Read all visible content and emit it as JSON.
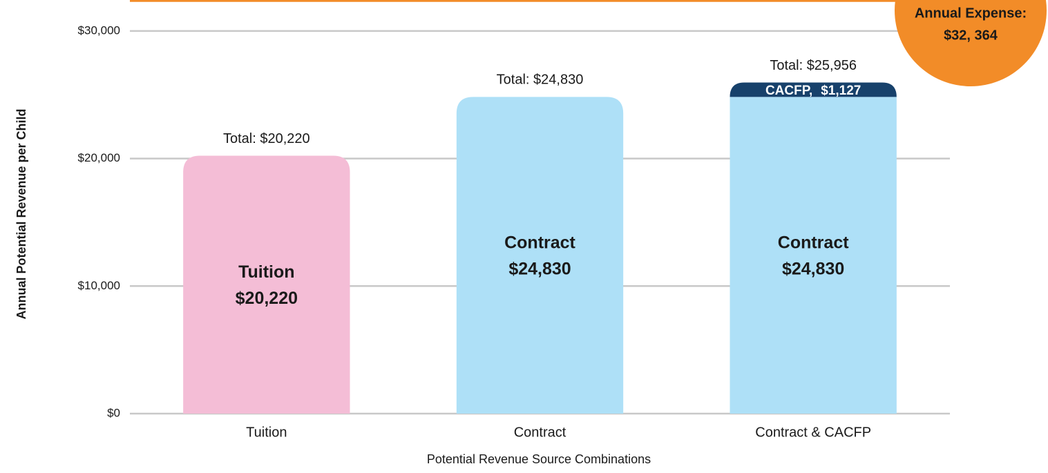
{
  "chart_data": {
    "type": "stacked_bar",
    "categories": [
      "Tuition",
      "Contract",
      "Contract & CACFP"
    ],
    "series": [
      {
        "name": "Tuition",
        "color": "#f4bdd6",
        "values": [
          20220,
          null,
          null
        ],
        "value_labels": [
          "$20,220",
          null,
          null
        ]
      },
      {
        "name": "Contract",
        "color": "#aee0f7",
        "values": [
          null,
          24830,
          24830
        ],
        "value_labels": [
          null,
          "$24,830",
          "$24,830"
        ]
      },
      {
        "name": "CACFP,",
        "color": "#17416b",
        "values": [
          null,
          null,
          1127
        ],
        "value_labels": [
          null,
          null,
          "$1,127"
        ]
      }
    ],
    "totals": {
      "values": [
        20220,
        24830,
        25956
      ],
      "value_labels": [
        "Total: $20,220",
        "Total: $24,830",
        "Total: $25,956"
      ]
    },
    "reference_line": {
      "value": 32364,
      "color": "#f28c28",
      "label_lines": [
        "Annual Expense:",
        "$32, 364"
      ]
    },
    "xlabel": "Potential Revenue Source Combinations",
    "ylabel": "Annual Potential Revenue per Child",
    "ylim": [
      0,
      32430
    ],
    "yticks": [
      {
        "value": 0,
        "label": "$0"
      },
      {
        "value": 10000,
        "label": "$10,000"
      },
      {
        "value": 20000,
        "label": "$20,000"
      },
      {
        "value": 30000,
        "label": "$30,000"
      }
    ],
    "grid": true
  }
}
